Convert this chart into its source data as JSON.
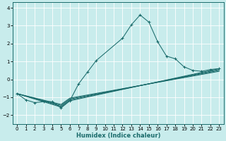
{
  "title": "",
  "xlabel": "Humidex (Indice chaleur)",
  "ylabel": "",
  "background_color": "#c8ecec",
  "line_color": "#1a6b6b",
  "grid_color": "#ffffff",
  "xlim": [
    -0.5,
    23.5
  ],
  "ylim": [
    -2.5,
    4.3
  ],
  "xticks": [
    0,
    1,
    2,
    3,
    4,
    5,
    6,
    7,
    8,
    9,
    10,
    11,
    12,
    13,
    14,
    15,
    16,
    17,
    18,
    19,
    20,
    21,
    22,
    23
  ],
  "yticks": [
    -2,
    -1,
    0,
    1,
    2,
    3,
    4
  ],
  "main_curve_x": [
    0,
    1,
    2,
    3,
    4,
    5,
    6,
    7,
    8,
    9,
    12,
    13,
    14,
    15,
    16,
    17,
    18,
    19,
    20,
    21,
    22,
    23
  ],
  "main_curve_y": [
    -0.8,
    -1.15,
    -1.3,
    -1.25,
    -1.25,
    -1.6,
    -1.2,
    -0.25,
    0.4,
    1.05,
    2.3,
    3.05,
    3.6,
    3.2,
    2.1,
    1.3,
    1.15,
    0.7,
    0.5,
    0.45,
    0.55,
    0.6
  ],
  "flat_lines": [
    {
      "x": [
        0,
        5,
        6,
        23
      ],
      "y": [
        -0.8,
        -1.55,
        -1.2,
        0.6
      ]
    },
    {
      "x": [
        0,
        5,
        6,
        23
      ],
      "y": [
        -0.8,
        -1.5,
        -1.15,
        0.55
      ]
    },
    {
      "x": [
        0,
        5,
        6,
        23
      ],
      "y": [
        -0.8,
        -1.45,
        -1.1,
        0.5
      ]
    },
    {
      "x": [
        0,
        5,
        6,
        23
      ],
      "y": [
        -0.8,
        -1.4,
        -1.05,
        0.45
      ]
    }
  ],
  "tick_fontsize": 5.0,
  "xlabel_fontsize": 6.0
}
